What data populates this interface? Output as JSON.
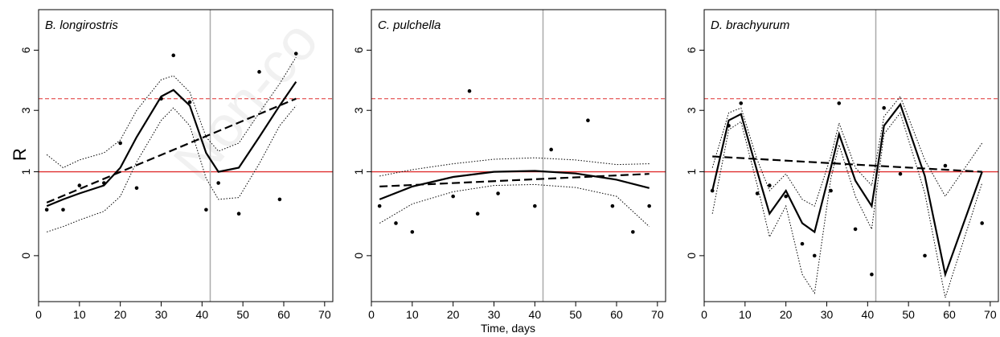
{
  "chart_data": {
    "type": "scatter",
    "ylabel": "R",
    "xlabel": "Time, days",
    "watermark": "Non-co",
    "xlim": [
      0,
      72
    ],
    "ylim": [
      -0.3,
      8.6
    ],
    "y_scale": "sqrt",
    "xticks": [
      0,
      10,
      20,
      30,
      40,
      50,
      60,
      70
    ],
    "yticks": [
      0,
      1,
      3,
      6
    ],
    "reference_lines": {
      "h_red_solid": 1,
      "h_red_dashed": 3.5,
      "v_gray": 42
    },
    "colors": {
      "points": "#000000",
      "reference": "#e03030",
      "vline": "#aaaaaa",
      "frame": "#000000"
    },
    "panels": [
      {
        "title": "B. longirostris",
        "points": {
          "x": [
            2,
            6,
            10,
            16,
            20,
            24,
            30,
            33,
            37,
            41,
            44,
            49,
            54,
            59,
            63
          ],
          "y": [
            0.3,
            0.3,
            0.7,
            0.75,
            1.8,
            0.65,
            3.5,
            5.7,
            3.35,
            0.3,
            0.75,
            0.25,
            4.8,
            0.45,
            5.8
          ]
        },
        "fit_solid": {
          "x": [
            2,
            6,
            10,
            16,
            20,
            24,
            30,
            33,
            37,
            41,
            44,
            49,
            54,
            59,
            63
          ],
          "y": [
            0.35,
            0.45,
            0.55,
            0.7,
            1.1,
            2.0,
            3.6,
            3.9,
            3.2,
            1.5,
            1.0,
            1.1,
            2.0,
            3.2,
            4.3
          ]
        },
        "fit_upper": {
          "x": [
            2,
            6,
            10,
            16,
            20,
            24,
            30,
            33,
            37,
            41,
            44,
            49,
            54,
            59,
            63
          ],
          "y": [
            1.45,
            1.1,
            1.3,
            1.5,
            1.9,
            3.0,
            4.4,
            4.6,
            3.8,
            2.0,
            1.55,
            1.8,
            2.9,
            4.2,
            5.6
          ]
        },
        "fit_lower": {
          "x": [
            2,
            6,
            10,
            16,
            20,
            24,
            30,
            33,
            37,
            41,
            44,
            49,
            54,
            59,
            63
          ],
          "y": [
            0.08,
            0.12,
            0.18,
            0.28,
            0.5,
            1.25,
            2.6,
            3.1,
            2.4,
            0.85,
            0.45,
            0.48,
            1.2,
            2.4,
            3.2
          ]
        },
        "trend_dashed": {
          "x": [
            2,
            63
          ],
          "y": [
            0.4,
            3.5
          ]
        }
      },
      {
        "title": "C. pulchella",
        "points": {
          "x": [
            2,
            6,
            10,
            20,
            24,
            26,
            31,
            40,
            44,
            53,
            59,
            64,
            68
          ],
          "y": [
            0.35,
            0.15,
            0.08,
            0.5,
            3.85,
            0.25,
            0.55,
            0.35,
            1.6,
            2.6,
            0.35,
            0.08,
            0.35
          ]
        },
        "fit_solid": {
          "x": [
            2,
            10,
            20,
            30,
            40,
            50,
            60,
            68
          ],
          "y": [
            0.45,
            0.68,
            0.88,
            1.0,
            1.02,
            0.96,
            0.82,
            0.65
          ]
        },
        "fit_upper": {
          "x": [
            2,
            10,
            20,
            30,
            40,
            50,
            60,
            68
          ],
          "y": [
            0.9,
            1.05,
            1.2,
            1.32,
            1.36,
            1.3,
            1.18,
            1.2
          ]
        },
        "fit_lower": {
          "x": [
            2,
            10,
            20,
            30,
            40,
            50,
            60,
            68
          ],
          "y": [
            0.15,
            0.38,
            0.58,
            0.7,
            0.72,
            0.66,
            0.5,
            0.12
          ]
        },
        "trend_dashed": {
          "x": [
            2,
            68
          ],
          "y": [
            0.68,
            0.95
          ]
        }
      },
      {
        "title": "D. brachyurum",
        "points": {
          "x": [
            2,
            6,
            9,
            13,
            16,
            20,
            24,
            27,
            31,
            33,
            37,
            41,
            44,
            48,
            54,
            59,
            68
          ],
          "y": [
            0.6,
            2.4,
            3.3,
            0.55,
            0.7,
            0.5,
            0.02,
            0.0,
            0.6,
            3.3,
            0.1,
            -0.05,
            3.1,
            0.95,
            0.0,
            1.15,
            0.15
          ]
        },
        "fit_solid": {
          "x": [
            2,
            6,
            9,
            13,
            16,
            20,
            24,
            27,
            31,
            33,
            37,
            41,
            44,
            48,
            54,
            59,
            68
          ],
          "y": [
            0.6,
            2.6,
            2.85,
            1.0,
            0.25,
            0.6,
            0.15,
            0.08,
            1.1,
            2.1,
            0.8,
            0.35,
            2.4,
            3.25,
            0.9,
            -0.05,
            1.0
          ]
        },
        "fit_upper": {
          "x": [
            2,
            6,
            9,
            13,
            16,
            20,
            24,
            27,
            31,
            33,
            37,
            41,
            44,
            48,
            54,
            59,
            68
          ],
          "y": [
            1.1,
            2.9,
            3.1,
            1.3,
            0.6,
            0.95,
            0.45,
            0.35,
            1.4,
            2.5,
            1.1,
            0.7,
            2.75,
            3.6,
            1.3,
            0.5,
            1.8
          ]
        },
        "fit_lower": {
          "x": [
            2,
            6,
            9,
            13,
            16,
            20,
            24,
            27,
            31,
            33,
            37,
            41,
            44,
            48,
            54,
            59,
            68
          ],
          "y": [
            0.25,
            2.25,
            2.55,
            0.7,
            0.05,
            0.35,
            -0.05,
            -0.2,
            0.85,
            1.75,
            0.5,
            0.1,
            2.1,
            2.9,
            0.55,
            -0.25,
            0.75
          ]
        },
        "trend_dashed": {
          "x": [
            2,
            68
          ],
          "y": [
            1.4,
            1.0
          ]
        }
      }
    ]
  }
}
